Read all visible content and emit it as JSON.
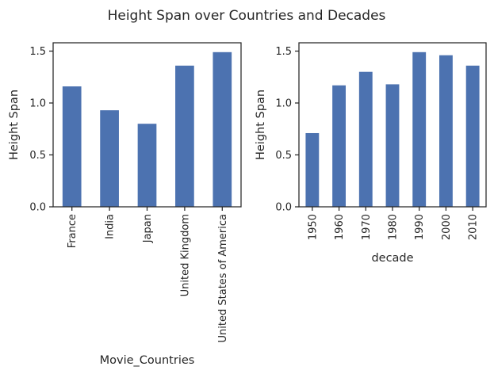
{
  "figure": {
    "title": "Height Span over Countries and Decades"
  },
  "style": {
    "bar_color": "#4c72b0",
    "axis_color": "#262626",
    "background": "#ffffff"
  },
  "chart_data": [
    {
      "type": "bar",
      "title": "",
      "xlabel": "Movie_Countries",
      "ylabel": "Height Span",
      "categories": [
        "France",
        "India",
        "Japan",
        "United Kingdom",
        "United States of America"
      ],
      "values": [
        1.16,
        0.93,
        0.8,
        1.36,
        1.49
      ],
      "ylim": [
        0,
        1.58
      ],
      "yticks": [
        0.0,
        0.5,
        1.0,
        1.5
      ],
      "ytick_labels": [
        "0.0",
        "0.5",
        "1.0",
        "1.5"
      ],
      "grid": false,
      "legend": "none"
    },
    {
      "type": "bar",
      "title": "",
      "xlabel": "decade",
      "ylabel": "Height Span",
      "categories": [
        "1950",
        "1960",
        "1970",
        "1980",
        "1990",
        "2000",
        "2010"
      ],
      "values": [
        0.71,
        1.17,
        1.3,
        1.18,
        1.49,
        1.46,
        1.36
      ],
      "ylim": [
        0,
        1.58
      ],
      "yticks": [
        0.0,
        0.5,
        1.0,
        1.5
      ],
      "ytick_labels": [
        "0.0",
        "0.5",
        "1.0",
        "1.5"
      ],
      "grid": false,
      "legend": "none"
    }
  ]
}
